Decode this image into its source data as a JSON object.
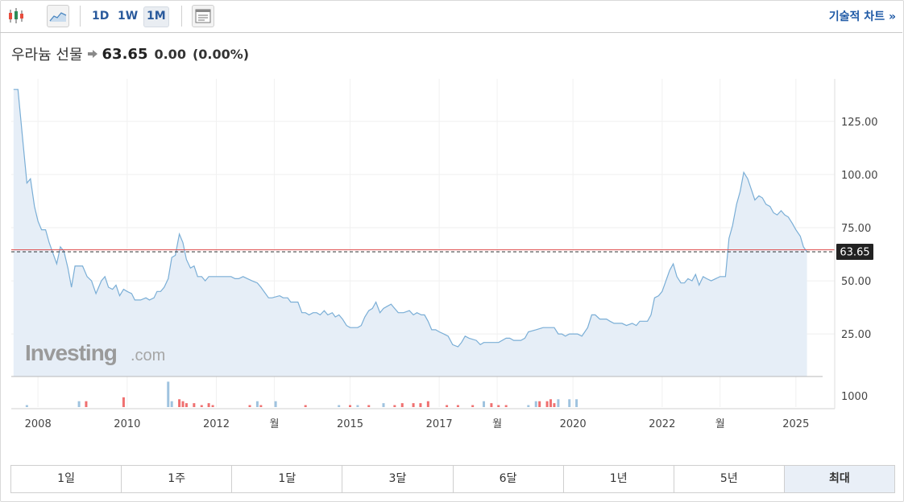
{
  "toolbar": {
    "icons": [
      "candlestick-icon",
      "area-chart-icon",
      "layout-icon"
    ],
    "interval_buttons": [
      "1D",
      "1W",
      "1M"
    ],
    "active_interval": "1M",
    "tech_chart_link": "기술적 차트 »"
  },
  "quote": {
    "name": "우라늄 선물",
    "price": "63.65",
    "change": "0.00",
    "change_pct": "(0.00%)"
  },
  "watermark": {
    "brand": "Investing",
    "suffix": ".com"
  },
  "range_buttons": [
    "1일",
    "1주",
    "1달",
    "3달",
    "6달",
    "1년",
    "5년",
    "최대"
  ],
  "active_range": "최대",
  "colors": {
    "line": "#7aaed6",
    "area": "#e6eef7",
    "price_line": "#e05050",
    "volume_up": "#ef7070",
    "volume_down": "#9fc3df",
    "link": "#1f5aa6"
  },
  "chart_data": {
    "type": "area",
    "x_tick_labels": [
      "2008",
      "2010",
      "2012",
      "월",
      "2015",
      "2017",
      "월",
      "2020",
      "2022",
      "월",
      "2025"
    ],
    "x_tick_dates": [
      2008.0,
      2010.0,
      2012.0,
      2013.3,
      2015.0,
      2017.0,
      2018.3,
      2020.0,
      2022.0,
      2023.3,
      2025.0
    ],
    "y_ticks": [
      25,
      50,
      75,
      100,
      125
    ],
    "y_tick_labels": [
      "25.00",
      "50.00",
      "75.00",
      "100.00",
      "125.00"
    ],
    "ylim": [
      5,
      145
    ],
    "xlim": [
      2007.4,
      2025.6
    ],
    "current_price": 63.65,
    "current_price_label": "63.65",
    "volume_axis_label": "1000",
    "grid": true,
    "series": [
      {
        "points": [
          [
            2007.45,
            140
          ],
          [
            2007.55,
            140
          ],
          [
            2007.65,
            118
          ],
          [
            2007.75,
            96
          ],
          [
            2007.83,
            98
          ],
          [
            2007.92,
            85
          ],
          [
            2008.0,
            78
          ],
          [
            2008.08,
            74
          ],
          [
            2008.17,
            74
          ],
          [
            2008.25,
            68
          ],
          [
            2008.42,
            58
          ],
          [
            2008.5,
            66
          ],
          [
            2008.58,
            64
          ],
          [
            2008.67,
            56
          ],
          [
            2008.75,
            47
          ],
          [
            2008.83,
            57
          ],
          [
            2008.92,
            57
          ],
          [
            2009.0,
            57
          ],
          [
            2009.1,
            52
          ],
          [
            2009.2,
            50
          ],
          [
            2009.3,
            44
          ],
          [
            2009.42,
            50
          ],
          [
            2009.5,
            52
          ],
          [
            2009.58,
            47
          ],
          [
            2009.67,
            46
          ],
          [
            2009.75,
            48
          ],
          [
            2009.83,
            43
          ],
          [
            2009.92,
            46
          ],
          [
            2010.0,
            45
          ],
          [
            2010.1,
            44
          ],
          [
            2010.17,
            41
          ],
          [
            2010.3,
            41
          ],
          [
            2010.42,
            42
          ],
          [
            2010.5,
            41
          ],
          [
            2010.6,
            42
          ],
          [
            2010.67,
            45
          ],
          [
            2010.75,
            45
          ],
          [
            2010.83,
            47
          ],
          [
            2010.92,
            51
          ],
          [
            2011.0,
            61
          ],
          [
            2011.08,
            62
          ],
          [
            2011.17,
            72
          ],
          [
            2011.25,
            68
          ],
          [
            2011.33,
            60
          ],
          [
            2011.42,
            56
          ],
          [
            2011.5,
            57
          ],
          [
            2011.58,
            52
          ],
          [
            2011.67,
            52
          ],
          [
            2011.75,
            50
          ],
          [
            2011.83,
            52
          ],
          [
            2011.92,
            52
          ],
          [
            2012.0,
            52
          ],
          [
            2012.2,
            52
          ],
          [
            2012.33,
            52
          ],
          [
            2012.42,
            51
          ],
          [
            2012.5,
            51
          ],
          [
            2012.6,
            52
          ],
          [
            2012.7,
            51
          ],
          [
            2012.8,
            50
          ],
          [
            2012.92,
            49
          ],
          [
            2013.0,
            47
          ],
          [
            2013.17,
            42
          ],
          [
            2013.25,
            42
          ],
          [
            2013.42,
            43
          ],
          [
            2013.5,
            42
          ],
          [
            2013.6,
            42
          ],
          [
            2013.67,
            40
          ],
          [
            2013.83,
            40
          ],
          [
            2013.92,
            35
          ],
          [
            2014.0,
            35
          ],
          [
            2014.08,
            34
          ],
          [
            2014.17,
            35
          ],
          [
            2014.25,
            35
          ],
          [
            2014.33,
            34
          ],
          [
            2014.42,
            36
          ],
          [
            2014.5,
            34
          ],
          [
            2014.6,
            35
          ],
          [
            2014.67,
            33
          ],
          [
            2014.75,
            34
          ],
          [
            2014.83,
            32
          ],
          [
            2014.92,
            29
          ],
          [
            2015.0,
            28
          ],
          [
            2015.17,
            28
          ],
          [
            2015.25,
            29
          ],
          [
            2015.33,
            33
          ],
          [
            2015.42,
            36
          ],
          [
            2015.5,
            37
          ],
          [
            2015.58,
            40
          ],
          [
            2015.67,
            35
          ],
          [
            2015.75,
            37
          ],
          [
            2015.83,
            38
          ],
          [
            2015.92,
            39
          ],
          [
            2016.0,
            37
          ],
          [
            2016.08,
            35
          ],
          [
            2016.2,
            35
          ],
          [
            2016.33,
            36
          ],
          [
            2016.42,
            34
          ],
          [
            2016.5,
            35
          ],
          [
            2016.6,
            34
          ],
          [
            2016.67,
            34
          ],
          [
            2016.75,
            31
          ],
          [
            2016.83,
            27
          ],
          [
            2016.92,
            27
          ],
          [
            2017.0,
            26
          ],
          [
            2017.1,
            25
          ],
          [
            2017.2,
            24
          ],
          [
            2017.3,
            20
          ],
          [
            2017.42,
            19
          ],
          [
            2017.5,
            21
          ],
          [
            2017.58,
            24
          ],
          [
            2017.67,
            23
          ],
          [
            2017.83,
            22
          ],
          [
            2017.92,
            20
          ],
          [
            2018.0,
            21
          ],
          [
            2018.17,
            21
          ],
          [
            2018.33,
            21
          ],
          [
            2018.5,
            23
          ],
          [
            2018.58,
            23
          ],
          [
            2018.67,
            22
          ],
          [
            2018.83,
            22
          ],
          [
            2018.92,
            23
          ],
          [
            2019.0,
            26
          ],
          [
            2019.17,
            27
          ],
          [
            2019.33,
            28
          ],
          [
            2019.42,
            28
          ],
          [
            2019.58,
            28
          ],
          [
            2019.67,
            25
          ],
          [
            2019.75,
            25
          ],
          [
            2019.83,
            24
          ],
          [
            2019.92,
            25
          ],
          [
            2020.0,
            25
          ],
          [
            2020.1,
            25
          ],
          [
            2020.2,
            24
          ],
          [
            2020.33,
            28
          ],
          [
            2020.42,
            34
          ],
          [
            2020.5,
            34
          ],
          [
            2020.6,
            32
          ],
          [
            2020.75,
            32
          ],
          [
            2020.83,
            31
          ],
          [
            2020.92,
            30
          ],
          [
            2021.0,
            30
          ],
          [
            2021.1,
            30
          ],
          [
            2021.2,
            29
          ],
          [
            2021.33,
            30
          ],
          [
            2021.42,
            29
          ],
          [
            2021.5,
            31
          ],
          [
            2021.58,
            31
          ],
          [
            2021.67,
            31
          ],
          [
            2021.75,
            34
          ],
          [
            2021.83,
            42
          ],
          [
            2021.92,
            43
          ],
          [
            2022.0,
            45
          ],
          [
            2022.17,
            55
          ],
          [
            2022.25,
            58
          ],
          [
            2022.33,
            52
          ],
          [
            2022.42,
            49
          ],
          [
            2022.5,
            49
          ],
          [
            2022.58,
            51
          ],
          [
            2022.67,
            50
          ],
          [
            2022.75,
            53
          ],
          [
            2022.83,
            48
          ],
          [
            2022.92,
            52
          ],
          [
            2023.0,
            51
          ],
          [
            2023.1,
            50
          ],
          [
            2023.2,
            51
          ],
          [
            2023.3,
            52
          ],
          [
            2023.42,
            52
          ],
          [
            2023.5,
            70
          ],
          [
            2023.58,
            76
          ],
          [
            2023.67,
            86
          ],
          [
            2023.75,
            92
          ],
          [
            2023.83,
            101
          ],
          [
            2023.92,
            98
          ],
          [
            2024.0,
            93
          ],
          [
            2024.08,
            88
          ],
          [
            2024.17,
            90
          ],
          [
            2024.25,
            89
          ],
          [
            2024.33,
            86
          ],
          [
            2024.42,
            85
          ],
          [
            2024.5,
            82
          ],
          [
            2024.58,
            81
          ],
          [
            2024.67,
            83
          ],
          [
            2024.75,
            81
          ],
          [
            2024.83,
            80
          ],
          [
            2024.92,
            77
          ],
          [
            2025.0,
            74
          ],
          [
            2025.1,
            71
          ],
          [
            2025.17,
            66
          ],
          [
            2025.25,
            63.65
          ]
        ]
      }
    ],
    "volume": [
      {
        "x": 2007.75,
        "v": 1,
        "dir": "down"
      },
      {
        "x": 2008.92,
        "v": 3,
        "dir": "down"
      },
      {
        "x": 2009.08,
        "v": 3,
        "dir": "up"
      },
      {
        "x": 2009.92,
        "v": 5,
        "dir": "up"
      },
      {
        "x": 2010.92,
        "v": 13,
        "dir": "down"
      },
      {
        "x": 2011.0,
        "v": 3,
        "dir": "down"
      },
      {
        "x": 2011.17,
        "v": 4,
        "dir": "up"
      },
      {
        "x": 2011.25,
        "v": 3,
        "dir": "up"
      },
      {
        "x": 2011.33,
        "v": 2,
        "dir": "up"
      },
      {
        "x": 2011.5,
        "v": 2,
        "dir": "up"
      },
      {
        "x": 2011.67,
        "v": 1,
        "dir": "up"
      },
      {
        "x": 2011.83,
        "v": 2,
        "dir": "up"
      },
      {
        "x": 2011.92,
        "v": 1,
        "dir": "up"
      },
      {
        "x": 2012.75,
        "v": 1,
        "dir": "up"
      },
      {
        "x": 2012.92,
        "v": 3,
        "dir": "down"
      },
      {
        "x": 2013.0,
        "v": 1,
        "dir": "up"
      },
      {
        "x": 2013.33,
        "v": 3,
        "dir": "down"
      },
      {
        "x": 2014.0,
        "v": 1,
        "dir": "up"
      },
      {
        "x": 2014.75,
        "v": 1,
        "dir": "down"
      },
      {
        "x": 2015.0,
        "v": 1,
        "dir": "up"
      },
      {
        "x": 2015.17,
        "v": 1,
        "dir": "down"
      },
      {
        "x": 2015.42,
        "v": 1,
        "dir": "up"
      },
      {
        "x": 2015.75,
        "v": 2,
        "dir": "down"
      },
      {
        "x": 2016.0,
        "v": 1,
        "dir": "up"
      },
      {
        "x": 2016.17,
        "v": 2,
        "dir": "up"
      },
      {
        "x": 2016.42,
        "v": 2,
        "dir": "up"
      },
      {
        "x": 2016.58,
        "v": 2,
        "dir": "up"
      },
      {
        "x": 2016.75,
        "v": 3,
        "dir": "up"
      },
      {
        "x": 2017.17,
        "v": 1,
        "dir": "up"
      },
      {
        "x": 2017.42,
        "v": 1,
        "dir": "up"
      },
      {
        "x": 2017.75,
        "v": 1,
        "dir": "up"
      },
      {
        "x": 2018.0,
        "v": 3,
        "dir": "down"
      },
      {
        "x": 2018.17,
        "v": 2,
        "dir": "up"
      },
      {
        "x": 2018.33,
        "v": 1,
        "dir": "up"
      },
      {
        "x": 2018.5,
        "v": 1,
        "dir": "up"
      },
      {
        "x": 2019.0,
        "v": 1,
        "dir": "down"
      },
      {
        "x": 2019.17,
        "v": 3,
        "dir": "down"
      },
      {
        "x": 2019.25,
        "v": 3,
        "dir": "up"
      },
      {
        "x": 2019.42,
        "v": 3,
        "dir": "up"
      },
      {
        "x": 2019.5,
        "v": 4,
        "dir": "up"
      },
      {
        "x": 2019.58,
        "v": 2,
        "dir": "up"
      },
      {
        "x": 2019.67,
        "v": 4,
        "dir": "down"
      },
      {
        "x": 2019.92,
        "v": 4,
        "dir": "down"
      },
      {
        "x": 2020.08,
        "v": 4,
        "dir": "down"
      }
    ]
  }
}
